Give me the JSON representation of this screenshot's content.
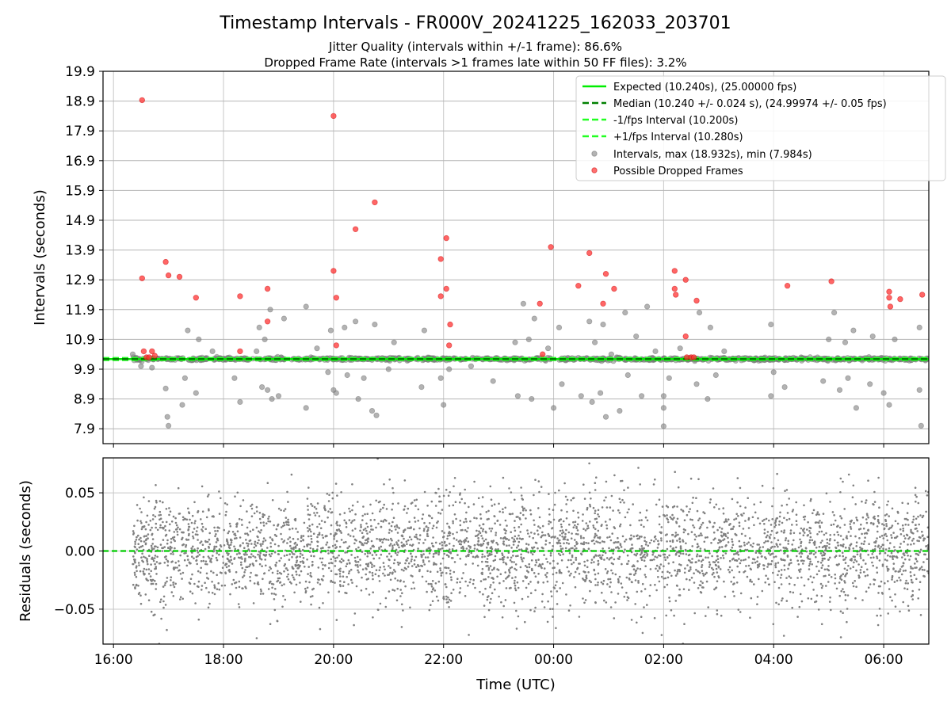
{
  "chart_data": {
    "title": "Timestamp Intervals - FR000V_20241225_162033_203701",
    "subtitle_lines": [
      "Jitter Quality (intervals within +/-1 frame): 86.6%",
      "Dropped Frame Rate (intervals >1 frames late within 50 FF files): 3.2%"
    ],
    "x_axis": {
      "label": "Time (UTC)",
      "unit": "hours since 16:00 UTC on 2024-12-25",
      "range": [
        -0.19,
        14.82
      ],
      "ticks": [
        {
          "value": 0,
          "label": "16:00"
        },
        {
          "value": 2,
          "label": "18:00"
        },
        {
          "value": 4,
          "label": "20:00"
        },
        {
          "value": 6,
          "label": "22:00"
        },
        {
          "value": 8,
          "label": "00:00"
        },
        {
          "value": 10,
          "label": "02:00"
        },
        {
          "value": 12,
          "label": "04:00"
        },
        {
          "value": 14,
          "label": "06:00"
        }
      ],
      "grid": true
    },
    "top_panel": {
      "type": "scatter",
      "ylabel": "Intervals (seconds)",
      "ylim": [
        7.4,
        19.9
      ],
      "yticks": [
        "7.9",
        "8.9",
        "9.9",
        "10.9",
        "11.9",
        "12.9",
        "13.9",
        "14.9",
        "15.9",
        "16.9",
        "17.9",
        "18.9",
        "19.9"
      ],
      "grid": true,
      "legend_position": "top-right",
      "lines": {
        "expected": {
          "name": "Expected (10.240s), (25.00000 fps)",
          "y": 10.24,
          "color": "#00ee00",
          "style": "solid"
        },
        "median": {
          "name": "Median (10.240 +/- 0.024 s), (24.99974 +/- 0.05 fps)",
          "y": 10.24,
          "color": "#008000",
          "style": "dashed"
        },
        "minus_fps": {
          "name": "-1/fps Interval (10.200s)",
          "y": 10.2,
          "color": "#22ff22",
          "style": "dashed"
        },
        "plus_fps": {
          "name": "+1/fps Interval (10.280s)",
          "y": 10.28,
          "color": "#22ff22",
          "style": "dashed"
        }
      },
      "intervals": {
        "name": "Intervals, max (18.932s), min (7.984s)",
        "color": "#808080",
        "max": 18.932,
        "min": 7.984,
        "note": "thousands of points; dense band at 10.24 s",
        "notable_points": [
          {
            "x": 0.35,
            "y": 10.4
          },
          {
            "x": 0.5,
            "y": 10.0
          },
          {
            "x": 0.7,
            "y": 9.95
          },
          {
            "x": 0.95,
            "y": 9.25
          },
          {
            "x": 0.98,
            "y": 8.3
          },
          {
            "x": 1.0,
            "y": 8.0
          },
          {
            "x": 1.25,
            "y": 8.7
          },
          {
            "x": 1.3,
            "y": 9.6
          },
          {
            "x": 1.35,
            "y": 11.2
          },
          {
            "x": 1.5,
            "y": 9.1
          },
          {
            "x": 1.55,
            "y": 10.9
          },
          {
            "x": 1.8,
            "y": 10.5
          },
          {
            "x": 2.2,
            "y": 9.6
          },
          {
            "x": 2.3,
            "y": 8.8
          },
          {
            "x": 2.6,
            "y": 10.5
          },
          {
            "x": 2.65,
            "y": 11.3
          },
          {
            "x": 2.7,
            "y": 9.3
          },
          {
            "x": 2.75,
            "y": 10.9
          },
          {
            "x": 2.8,
            "y": 9.2
          },
          {
            "x": 2.85,
            "y": 11.9
          },
          {
            "x": 2.88,
            "y": 8.9
          },
          {
            "x": 3.0,
            "y": 9.0
          },
          {
            "x": 3.1,
            "y": 11.6
          },
          {
            "x": 3.5,
            "y": 8.6
          },
          {
            "x": 3.5,
            "y": 12.0
          },
          {
            "x": 3.7,
            "y": 10.6
          },
          {
            "x": 3.9,
            "y": 9.8
          },
          {
            "x": 3.95,
            "y": 11.2
          },
          {
            "x": 4.0,
            "y": 9.2
          },
          {
            "x": 4.05,
            "y": 9.1
          },
          {
            "x": 4.2,
            "y": 11.3
          },
          {
            "x": 4.25,
            "y": 9.7
          },
          {
            "x": 4.4,
            "y": 11.5
          },
          {
            "x": 4.45,
            "y": 8.9
          },
          {
            "x": 4.55,
            "y": 9.6
          },
          {
            "x": 4.7,
            "y": 8.5
          },
          {
            "x": 4.75,
            "y": 11.4
          },
          {
            "x": 4.78,
            "y": 8.35
          },
          {
            "x": 5.0,
            "y": 9.9
          },
          {
            "x": 5.1,
            "y": 10.8
          },
          {
            "x": 5.6,
            "y": 9.3
          },
          {
            "x": 5.65,
            "y": 11.2
          },
          {
            "x": 5.95,
            "y": 9.6
          },
          {
            "x": 6.0,
            "y": 8.7
          },
          {
            "x": 6.1,
            "y": 9.9
          },
          {
            "x": 6.5,
            "y": 10.0
          },
          {
            "x": 6.9,
            "y": 9.5
          },
          {
            "x": 7.3,
            "y": 10.8
          },
          {
            "x": 7.35,
            "y": 9.0
          },
          {
            "x": 7.45,
            "y": 12.1
          },
          {
            "x": 7.55,
            "y": 10.9
          },
          {
            "x": 7.6,
            "y": 8.9
          },
          {
            "x": 7.65,
            "y": 11.6
          },
          {
            "x": 7.9,
            "y": 10.6
          },
          {
            "x": 8.0,
            "y": 8.6
          },
          {
            "x": 8.1,
            "y": 11.3
          },
          {
            "x": 8.15,
            "y": 9.4
          },
          {
            "x": 8.5,
            "y": 9.0
          },
          {
            "x": 8.65,
            "y": 11.5
          },
          {
            "x": 8.7,
            "y": 8.8
          },
          {
            "x": 8.75,
            "y": 10.8
          },
          {
            "x": 8.85,
            "y": 9.1
          },
          {
            "x": 8.9,
            "y": 11.4
          },
          {
            "x": 8.95,
            "y": 8.3
          },
          {
            "x": 9.05,
            "y": 10.4
          },
          {
            "x": 9.2,
            "y": 8.5
          },
          {
            "x": 9.3,
            "y": 11.8
          },
          {
            "x": 9.35,
            "y": 9.7
          },
          {
            "x": 9.5,
            "y": 11.0
          },
          {
            "x": 9.6,
            "y": 9.0
          },
          {
            "x": 9.7,
            "y": 12.0
          },
          {
            "x": 9.85,
            "y": 10.5
          },
          {
            "x": 10.0,
            "y": 9.0
          },
          {
            "x": 10.0,
            "y": 8.6
          },
          {
            "x": 10.0,
            "y": 7.984
          },
          {
            "x": 10.1,
            "y": 9.6
          },
          {
            "x": 10.3,
            "y": 10.6
          },
          {
            "x": 10.6,
            "y": 9.4
          },
          {
            "x": 10.65,
            "y": 11.8
          },
          {
            "x": 10.8,
            "y": 8.9
          },
          {
            "x": 10.85,
            "y": 11.3
          },
          {
            "x": 10.95,
            "y": 9.7
          },
          {
            "x": 11.1,
            "y": 10.5
          },
          {
            "x": 11.95,
            "y": 9.0
          },
          {
            "x": 11.95,
            "y": 11.4
          },
          {
            "x": 12.0,
            "y": 9.8
          },
          {
            "x": 12.2,
            "y": 9.3
          },
          {
            "x": 12.5,
            "y": 10.3
          },
          {
            "x": 12.9,
            "y": 9.5
          },
          {
            "x": 13.0,
            "y": 10.9
          },
          {
            "x": 13.1,
            "y": 11.8
          },
          {
            "x": 13.2,
            "y": 9.2
          },
          {
            "x": 13.3,
            "y": 10.8
          },
          {
            "x": 13.35,
            "y": 9.6
          },
          {
            "x": 13.45,
            "y": 11.2
          },
          {
            "x": 13.5,
            "y": 8.6
          },
          {
            "x": 13.75,
            "y": 9.4
          },
          {
            "x": 13.8,
            "y": 11.0
          },
          {
            "x": 14.0,
            "y": 9.1
          },
          {
            "x": 14.1,
            "y": 8.7
          },
          {
            "x": 14.2,
            "y": 10.9
          },
          {
            "x": 14.5,
            "y": 10.2
          },
          {
            "x": 14.65,
            "y": 9.2
          },
          {
            "x": 14.65,
            "y": 11.3
          },
          {
            "x": 14.68,
            "y": 8.0
          }
        ]
      },
      "dropped_frames": {
        "name": "Possible Dropped Frames",
        "color": "#ff3333",
        "points": [
          {
            "x": 0.52,
            "y": 18.932
          },
          {
            "x": 0.52,
            "y": 12.95
          },
          {
            "x": 0.55,
            "y": 10.5
          },
          {
            "x": 0.6,
            "y": 10.3
          },
          {
            "x": 0.65,
            "y": 10.3
          },
          {
            "x": 0.7,
            "y": 10.5
          },
          {
            "x": 0.75,
            "y": 10.35
          },
          {
            "x": 0.95,
            "y": 13.5
          },
          {
            "x": 1.0,
            "y": 13.05
          },
          {
            "x": 1.2,
            "y": 13.0
          },
          {
            "x": 1.5,
            "y": 12.3
          },
          {
            "x": 2.3,
            "y": 12.35
          },
          {
            "x": 2.3,
            "y": 10.5
          },
          {
            "x": 2.8,
            "y": 12.6
          },
          {
            "x": 2.8,
            "y": 11.5
          },
          {
            "x": 4.0,
            "y": 18.4
          },
          {
            "x": 4.0,
            "y": 13.2
          },
          {
            "x": 4.05,
            "y": 12.3
          },
          {
            "x": 4.05,
            "y": 10.7
          },
          {
            "x": 4.4,
            "y": 14.6
          },
          {
            "x": 4.75,
            "y": 15.5
          },
          {
            "x": 5.95,
            "y": 13.6
          },
          {
            "x": 5.95,
            "y": 12.35
          },
          {
            "x": 6.05,
            "y": 14.3
          },
          {
            "x": 6.05,
            "y": 12.6
          },
          {
            "x": 6.12,
            "y": 11.4
          },
          {
            "x": 6.1,
            "y": 10.7
          },
          {
            "x": 7.75,
            "y": 12.1
          },
          {
            "x": 7.8,
            "y": 10.4
          },
          {
            "x": 7.95,
            "y": 14.0
          },
          {
            "x": 8.45,
            "y": 12.7
          },
          {
            "x": 8.65,
            "y": 13.8
          },
          {
            "x": 8.9,
            "y": 12.1
          },
          {
            "x": 8.95,
            "y": 13.1
          },
          {
            "x": 9.1,
            "y": 12.6
          },
          {
            "x": 10.2,
            "y": 13.2
          },
          {
            "x": 10.2,
            "y": 12.6
          },
          {
            "x": 10.22,
            "y": 12.4
          },
          {
            "x": 10.4,
            "y": 12.9
          },
          {
            "x": 10.4,
            "y": 11.0
          },
          {
            "x": 10.42,
            "y": 10.3
          },
          {
            "x": 10.5,
            "y": 10.3
          },
          {
            "x": 10.55,
            "y": 10.3
          },
          {
            "x": 10.6,
            "y": 12.2
          },
          {
            "x": 12.25,
            "y": 12.7
          },
          {
            "x": 13.05,
            "y": 12.85
          },
          {
            "x": 14.1,
            "y": 12.5
          },
          {
            "x": 14.1,
            "y": 12.3
          },
          {
            "x": 14.12,
            "y": 12.0
          },
          {
            "x": 14.3,
            "y": 12.25
          },
          {
            "x": 14.7,
            "y": 12.4
          }
        ]
      }
    },
    "bottom_panel": {
      "type": "scatter",
      "ylabel": "Residuals (seconds)",
      "ylim": [
        -0.08,
        0.08
      ],
      "yticks": [
        {
          "value": 0.05,
          "label": "0.05"
        },
        {
          "value": 0.0,
          "label": "0.00"
        },
        {
          "value": -0.05,
          "label": "−0.05"
        }
      ],
      "grid": true,
      "zero_line": {
        "y": 0.0,
        "color": "#00cc00",
        "style": "dashed"
      },
      "residuals": {
        "color": "#808080",
        "x_range": [
          0.35,
          14.82
        ],
        "note": "several thousand points, approximately normal around 0 with std ~0.024 s",
        "std": 0.024
      }
    }
  }
}
